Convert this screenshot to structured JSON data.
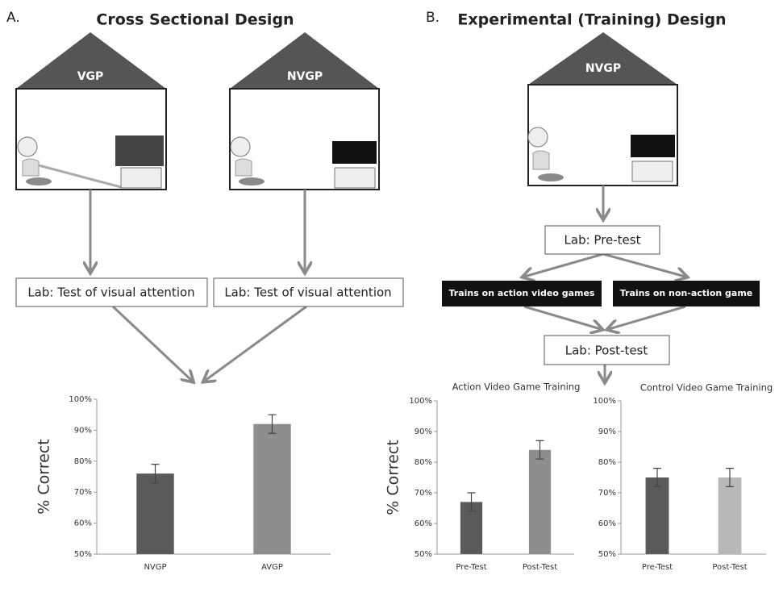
{
  "panels": [
    {
      "letter": "A.",
      "title": "Cross Sectional Design"
    },
    {
      "letter": "B.",
      "title": "Experimental (Training) Design"
    }
  ],
  "houses": [
    "VGP",
    "NVGP",
    "NVGP"
  ],
  "boxes": [
    "Lab: Test of visual attention",
    "Lab: Test of visual attention",
    "Lab: Pre-test",
    "Lab: Post-test"
  ],
  "training": [
    "Trains on action video games",
    "Trains on non-action game"
  ],
  "chart_data": [
    {
      "type": "bar",
      "y_label": "% Correct",
      "categories": [
        "NVGP",
        "AVGP"
      ],
      "values": [
        76,
        92
      ],
      "errors": [
        3,
        3
      ],
      "colors": [
        "#5a5a5a",
        "#8e8e8e"
      ],
      "ylim": [
        50,
        100
      ],
      "yticks": [
        {
          "value": 50,
          "label": "50%"
        },
        {
          "value": 60,
          "label": "60%"
        },
        {
          "value": 70,
          "label": "70%"
        },
        {
          "value": 80,
          "label": "80%"
        },
        {
          "value": 90,
          "label": "90%"
        },
        {
          "value": 100,
          "label": "100%"
        }
      ]
    },
    {
      "type": "bar",
      "title": "Action Video Game Training",
      "y_label": "% Correct",
      "categories": [
        "Pre-Test",
        "Post-Test"
      ],
      "values": [
        67,
        84
      ],
      "errors": [
        3,
        3
      ],
      "colors": [
        "#5a5a5a",
        "#8e8e8e"
      ],
      "ylim": [
        50,
        100
      ],
      "yticks": [
        {
          "value": 50,
          "label": "50%"
        },
        {
          "value": 60,
          "label": "60%"
        },
        {
          "value": 70,
          "label": "70%"
        },
        {
          "value": 80,
          "label": "80%"
        },
        {
          "value": 90,
          "label": "90%"
        },
        {
          "value": 100,
          "label": "100%"
        }
      ]
    },
    {
      "type": "bar",
      "title": "Control Video Game Training",
      "categories": [
        "Pre-Test",
        "Post-Test"
      ],
      "values": [
        75,
        75
      ],
      "errors": [
        3,
        3
      ],
      "colors": [
        "#5a5a5a",
        "#b8b8b8"
      ],
      "ylim": [
        50,
        100
      ],
      "yticks": [
        {
          "value": 50,
          "label": "50%"
        },
        {
          "value": 60,
          "label": "60%"
        },
        {
          "value": 70,
          "label": "70%"
        },
        {
          "value": 80,
          "label": "80%"
        },
        {
          "value": 90,
          "label": "90%"
        },
        {
          "value": 100,
          "label": "100%"
        }
      ]
    }
  ]
}
